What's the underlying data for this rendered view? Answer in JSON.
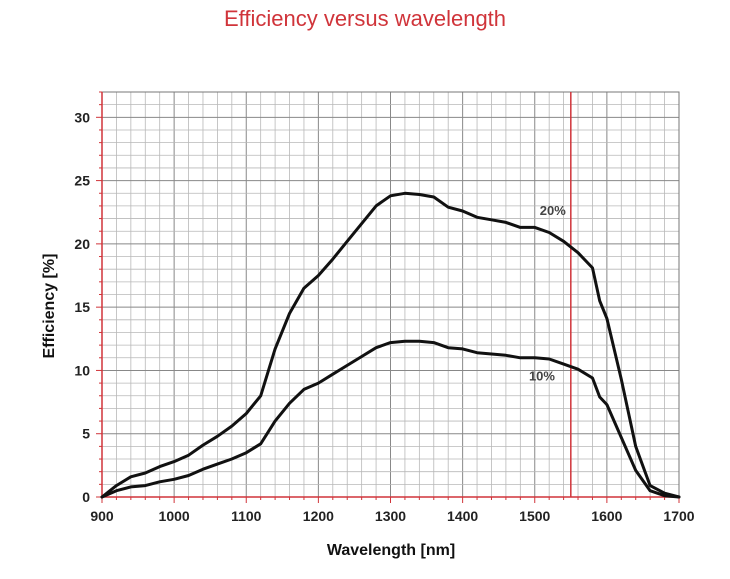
{
  "chart_data": {
    "type": "line",
    "title": "Efficiency versus wavelength",
    "xlabel": "Wavelength [nm]",
    "ylabel": "Efficiency [%]",
    "xlim": [
      900,
      1700
    ],
    "ylim": [
      0,
      32
    ],
    "xticks": [
      900,
      1000,
      1100,
      1200,
      1300,
      1400,
      1500,
      1600,
      1700
    ],
    "yticks": [
      0,
      5,
      10,
      15,
      20,
      25,
      30
    ],
    "grid": true,
    "marker_line": {
      "x": 1550,
      "color": "#d0343a"
    },
    "series": [
      {
        "name": "20%",
        "x": [
          900,
          920,
          940,
          960,
          980,
          1000,
          1020,
          1040,
          1060,
          1080,
          1100,
          1120,
          1140,
          1160,
          1180,
          1200,
          1220,
          1240,
          1260,
          1280,
          1300,
          1320,
          1340,
          1360,
          1380,
          1400,
          1420,
          1440,
          1460,
          1480,
          1500,
          1520,
          1540,
          1560,
          1580,
          1590,
          1600,
          1620,
          1640,
          1660,
          1680,
          1700
        ],
        "values": [
          0.0,
          0.9,
          1.6,
          1.9,
          2.4,
          2.8,
          3.3,
          4.1,
          4.8,
          5.6,
          6.6,
          8.0,
          11.7,
          14.5,
          16.5,
          17.5,
          18.8,
          20.2,
          21.6,
          23.0,
          23.8,
          24.0,
          23.9,
          23.7,
          22.9,
          22.6,
          22.1,
          21.9,
          21.7,
          21.3,
          21.3,
          20.9,
          20.2,
          19.3,
          18.1,
          15.5,
          14.1,
          9.3,
          4.0,
          0.9,
          0.3,
          0.0
        ]
      },
      {
        "name": "10%",
        "x": [
          900,
          920,
          940,
          960,
          980,
          1000,
          1020,
          1040,
          1060,
          1080,
          1100,
          1120,
          1140,
          1160,
          1180,
          1200,
          1220,
          1240,
          1260,
          1280,
          1300,
          1320,
          1340,
          1360,
          1380,
          1400,
          1420,
          1440,
          1460,
          1480,
          1500,
          1520,
          1540,
          1560,
          1580,
          1590,
          1600,
          1620,
          1640,
          1660,
          1680,
          1700
        ],
        "values": [
          0.0,
          0.5,
          0.8,
          0.9,
          1.2,
          1.4,
          1.7,
          2.2,
          2.6,
          3.0,
          3.5,
          4.2,
          6.0,
          7.4,
          8.5,
          9.0,
          9.7,
          10.4,
          11.1,
          11.8,
          12.2,
          12.3,
          12.3,
          12.2,
          11.8,
          11.7,
          11.4,
          11.3,
          11.2,
          11.0,
          11.0,
          10.9,
          10.5,
          10.1,
          9.4,
          7.9,
          7.3,
          4.7,
          2.1,
          0.5,
          0.1,
          0.0
        ]
      }
    ],
    "series_label_colors": "#444444"
  }
}
